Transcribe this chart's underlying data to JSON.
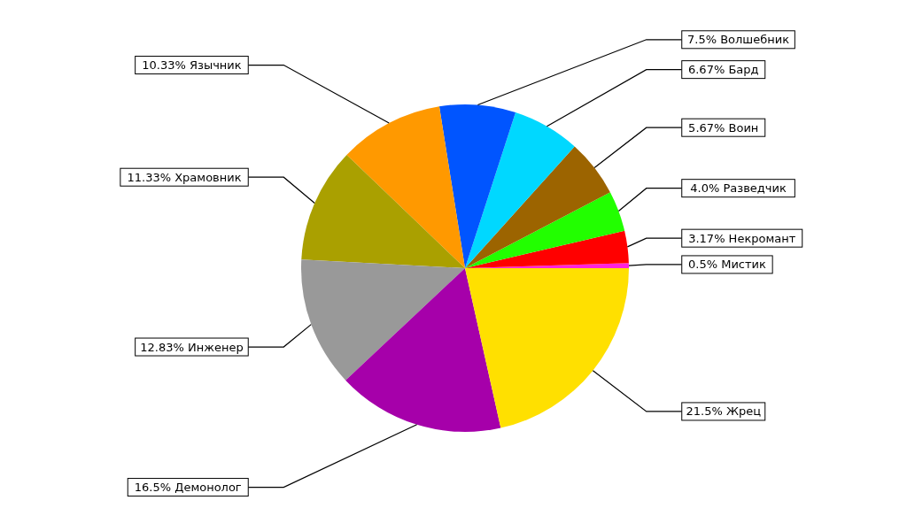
{
  "chart_data": {
    "type": "pie",
    "categories": [
      "Мистик",
      "Некромант",
      "Разведчик",
      "Воин",
      "Бард",
      "Волшебник",
      "Язычник",
      "Храмовник",
      "Инженер",
      "Демонолог",
      "Жрец"
    ],
    "values": [
      0.5,
      3.17,
      4.0,
      5.67,
      6.67,
      7.5,
      10.33,
      11.33,
      12.83,
      16.5,
      21.5
    ],
    "colors": [
      "#ff22dd",
      "#ff0000",
      "#22ff00",
      "#9c6400",
      "#00d8ff",
      "#0055ff",
      "#ff9900",
      "#aaa000",
      "#999999",
      "#a600aa",
      "#ffe000"
    ],
    "value_labels": [
      "0.5%",
      "3.17%",
      "4.0%",
      "5.67%",
      "6.67%",
      "7.5%",
      "10.33%",
      "11.33%",
      "12.83%",
      "16.5%",
      "21.5%"
    ]
  }
}
